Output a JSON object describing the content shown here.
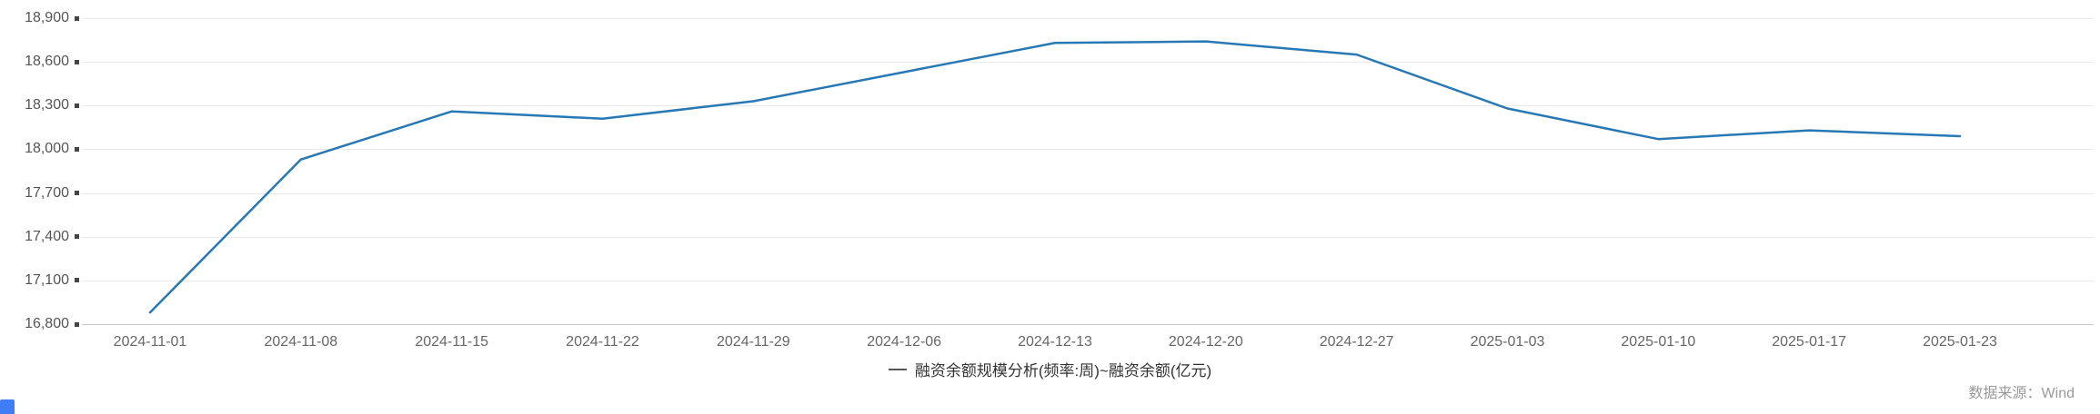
{
  "chart_data": {
    "type": "line",
    "title": "融资余额规模分析(频率:周)~融资余额(亿元)",
    "categories": [
      "2024-11-01",
      "2024-11-08",
      "2024-11-15",
      "2024-11-22",
      "2024-11-29",
      "2024-12-06",
      "2024-12-13",
      "2024-12-20",
      "2024-12-27",
      "2025-01-03",
      "2025-01-10",
      "2025-01-17",
      "2025-01-23"
    ],
    "series": [
      {
        "name": "融资余额(亿元)",
        "values": [
          16880,
          17930,
          18260,
          18210,
          18330,
          18530,
          18730,
          18740,
          18650,
          18280,
          18070,
          18130,
          18090
        ]
      }
    ],
    "ylim": [
      16800,
      18900
    ],
    "ytick_step": 300,
    "ytick_labels": [
      "18,900",
      "18,600",
      "18,300",
      "18,000",
      "17,700",
      "17,400",
      "17,100",
      "16,800"
    ],
    "xlabel": "",
    "ylabel": "",
    "grid": true,
    "legend_position": "bottom-center",
    "line_color": "#2878b4"
  },
  "footer": {
    "source_label": "数据来源：Wind"
  },
  "colors": {
    "line": "#2878b4",
    "grid": "#e9e9e9",
    "axis": "#c9c9c9",
    "tick_square": "#444444",
    "legend_marker": "#555555",
    "source_text": "#999999",
    "corner_accent": "#3f7df6"
  }
}
